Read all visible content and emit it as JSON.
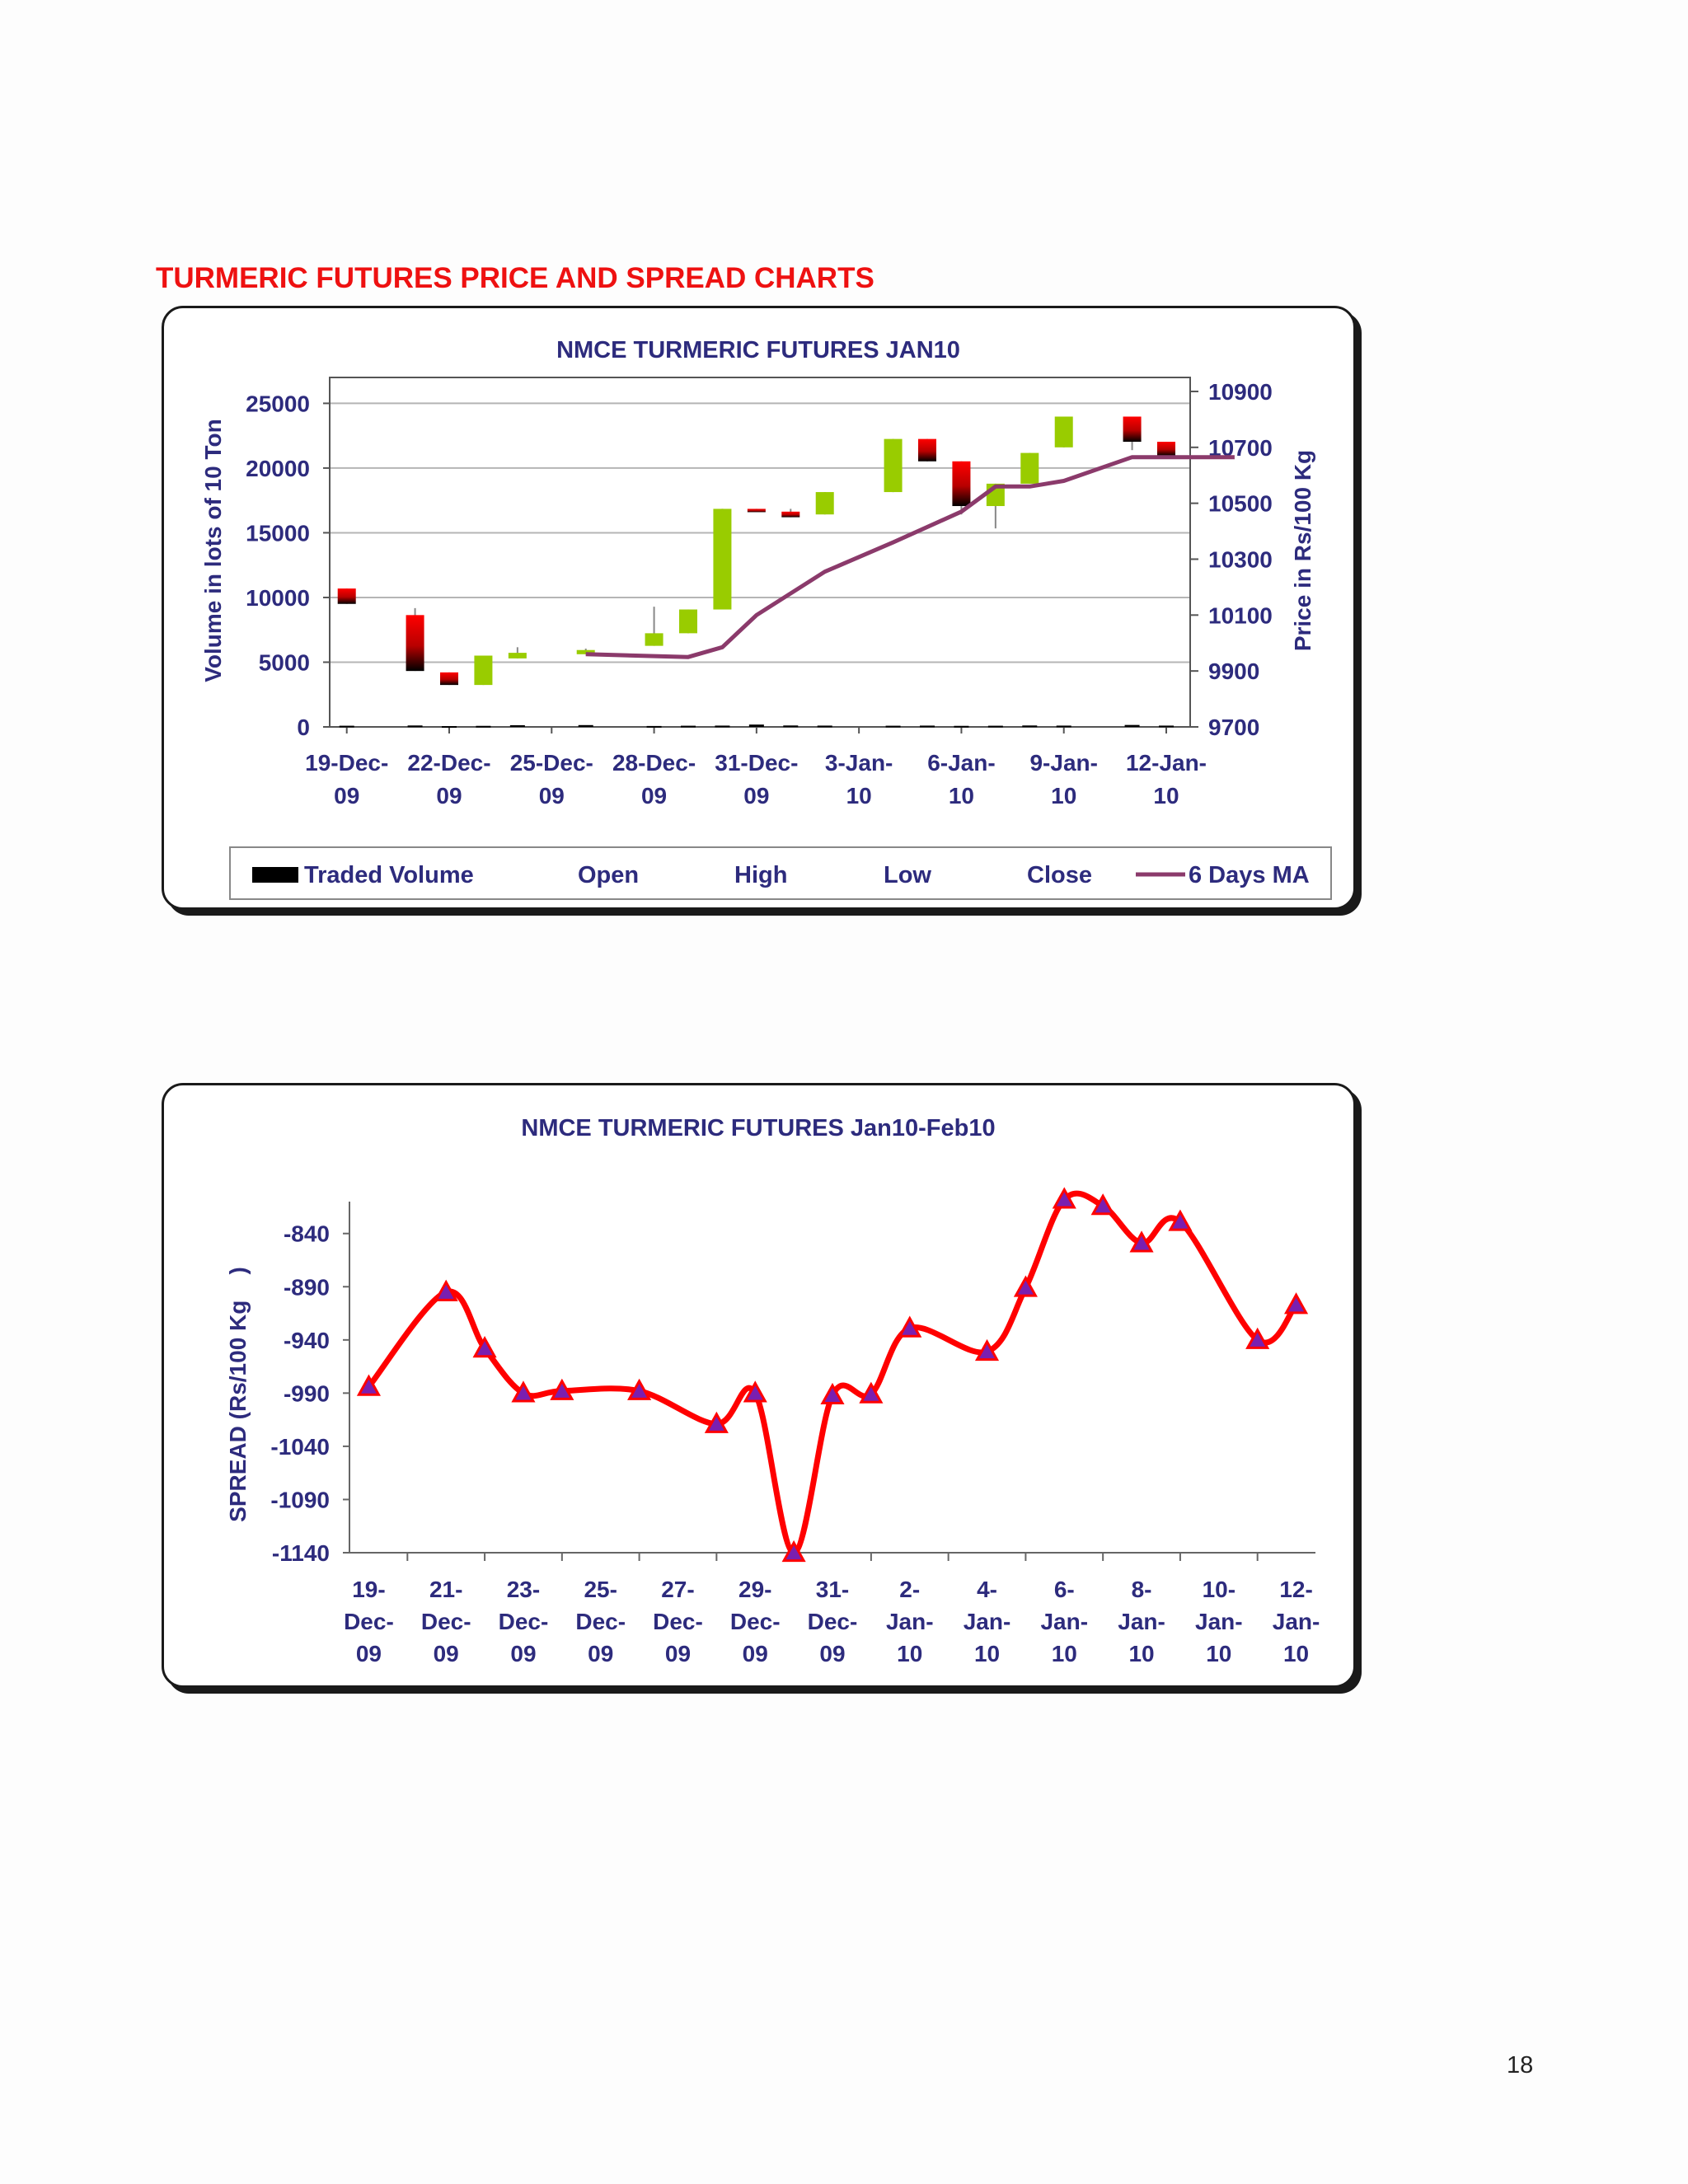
{
  "section_title": "TURMERIC FUTURES PRICE AND SPREAD CHARTS",
  "page_number": "18",
  "colors": {
    "title_red": "#ee1111",
    "text_navy": "#2d2b7d",
    "up_candle": "#99cc00",
    "down_candle_top": "#ff0000",
    "down_candle_bottom": "#000000",
    "ma_line": "#8b3a6b",
    "spread_line": "#ff0000",
    "marker_fill": "#7a1fb0",
    "grid": "#b5b5b5"
  },
  "chart_data": [
    {
      "type": "candlestick",
      "title": "NMCE TURMERIC FUTURES JAN10",
      "ylabel_left": "Volume in lots of 10 Ton",
      "ylabel_right": "Price in Rs/100 Kg",
      "left_ticks": [
        "0",
        "5000",
        "10000",
        "15000",
        "20000",
        "25000"
      ],
      "right_ticks": [
        "9700",
        "9900",
        "10100",
        "10300",
        "10500",
        "10700",
        "10900"
      ],
      "y_left_range": [
        0,
        27000
      ],
      "y_right_range": [
        9700,
        10950
      ],
      "x_tick_labels": [
        [
          "19-Dec-",
          "09"
        ],
        [
          "22-Dec-",
          "09"
        ],
        [
          "25-Dec-",
          "09"
        ],
        [
          "28-Dec-",
          "09"
        ],
        [
          "31-Dec-",
          "09"
        ],
        [
          "3-Jan-",
          "10"
        ],
        [
          "6-Jan-",
          "10"
        ],
        [
          "9-Jan-",
          "10"
        ],
        [
          "12-Jan-",
          "10"
        ]
      ],
      "x_tick_days": [
        0,
        3,
        6,
        9,
        12,
        15,
        18,
        21,
        24
      ],
      "x_range_days": [
        -0.5,
        24.7
      ],
      "legend": [
        "Traded Volume",
        "Open",
        "High",
        "Low",
        "Close",
        "6 Days MA"
      ],
      "legend_position": "bottom",
      "grid": true,
      "candles": [
        {
          "date": "19-Dec-09",
          "open": 10195,
          "high": 10195,
          "low": 10140,
          "close": 10140
        },
        {
          "date": "21-Dec-09",
          "open": 10100,
          "high": 10125,
          "low": 9900,
          "close": 9900
        },
        {
          "date": "22-Dec-09",
          "open": 9895,
          "high": 9895,
          "low": 9850,
          "close": 9850
        },
        {
          "date": "23-Dec-09",
          "open": 9850,
          "high": 9955,
          "low": 9850,
          "close": 9955
        },
        {
          "date": "24-Dec-09",
          "open": 9945,
          "high": 9985,
          "low": 9945,
          "close": 9965
        },
        {
          "date": "26-Dec-09",
          "open": 9960,
          "high": 9980,
          "low": 9960,
          "close": 9975
        },
        {
          "date": "28-Dec-09",
          "open": 9990,
          "high": 10130,
          "low": 9990,
          "close": 10035
        },
        {
          "date": "29-Dec-09",
          "open": 10035,
          "high": 10120,
          "low": 10035,
          "close": 10120
        },
        {
          "date": "30-Dec-09",
          "open": 10120,
          "high": 10480,
          "low": 10120,
          "close": 10480
        },
        {
          "date": "31-Dec-09",
          "open": 10480,
          "high": 10480,
          "low": 10470,
          "close": 10470
        },
        {
          "date": "1-Jan-10",
          "open": 10470,
          "high": 10480,
          "low": 10450,
          "close": 10450
        },
        {
          "date": "2-Jan-10",
          "open": 10460,
          "high": 10540,
          "low": 10460,
          "close": 10540
        },
        {
          "date": "4-Jan-10",
          "open": 10540,
          "high": 10730,
          "low": 10540,
          "close": 10730
        },
        {
          "date": "5-Jan-10",
          "open": 10730,
          "high": 10730,
          "low": 10650,
          "close": 10650
        },
        {
          "date": "6-Jan-10",
          "open": 10650,
          "high": 10650,
          "low": 10460,
          "close": 10490
        },
        {
          "date": "7-Jan-10",
          "open": 10490,
          "high": 10570,
          "low": 10410,
          "close": 10570
        },
        {
          "date": "8-Jan-10",
          "open": 10570,
          "high": 10680,
          "low": 10570,
          "close": 10680
        },
        {
          "date": "9-Jan-10",
          "open": 10700,
          "high": 10810,
          "low": 10700,
          "close": 10810
        },
        {
          "date": "11-Jan-10",
          "open": 10810,
          "high": 10810,
          "low": 10690,
          "close": 10720
        },
        {
          "date": "12-Jan-10",
          "open": 10720,
          "high": 10720,
          "low": 10660,
          "close": 10670
        }
      ],
      "candle_days": [
        0,
        2,
        3,
        4,
        5,
        7,
        9,
        10,
        11,
        12,
        13,
        14,
        16,
        17,
        18,
        19,
        20,
        21,
        23,
        24
      ],
      "traded_volume": [
        90,
        110,
        60,
        80,
        130,
        140,
        70,
        90,
        100,
        180,
        110,
        100,
        90,
        100,
        80,
        90,
        110,
        100,
        150,
        100
      ],
      "ma_6_days": [
        {
          "day": 7,
          "value": 9960
        },
        {
          "day": 10,
          "value": 9950
        },
        {
          "day": 11,
          "value": 9985
        },
        {
          "day": 12,
          "value": 10100
        },
        {
          "day": 14,
          "value": 10255
        },
        {
          "day": 16,
          "value": 10360
        },
        {
          "day": 18,
          "value": 10470
        },
        {
          "day": 19,
          "value": 10560
        },
        {
          "day": 20,
          "value": 10560
        },
        {
          "day": 21,
          "value": 10580
        },
        {
          "day": 23,
          "value": 10665
        },
        {
          "day": 24,
          "value": 10665
        },
        {
          "day": 26,
          "value": 10665
        }
      ]
    },
    {
      "type": "line",
      "title": "NMCE TURMERIC FUTURES Jan10-Feb10",
      "ylabel": "SPREAD (Rs/100 Kg    )",
      "y_ticks": [
        "-840",
        "-890",
        "-940",
        "-990",
        "-1040",
        "-1090",
        "-1140"
      ],
      "ylim": [
        -1140,
        -810
      ],
      "x_tick_labels": [
        [
          "19-",
          "Dec-",
          "09"
        ],
        [
          "21-",
          "Dec-",
          "09"
        ],
        [
          "23-",
          "Dec-",
          "09"
        ],
        [
          "25-",
          "Dec-",
          "09"
        ],
        [
          "27-",
          "Dec-",
          "09"
        ],
        [
          "29-",
          "Dec-",
          "09"
        ],
        [
          "31-",
          "Dec-",
          "09"
        ],
        [
          "2-",
          "Jan-",
          "10"
        ],
        [
          "4-",
          "Jan-",
          "10"
        ],
        [
          "6-",
          "Jan-",
          "10"
        ],
        [
          "8-",
          "Jan-",
          "10"
        ],
        [
          "10-",
          "Jan-",
          "10"
        ],
        [
          "12-",
          "Jan-",
          "10"
        ]
      ],
      "x_tick_days": [
        0,
        2,
        4,
        6,
        8,
        10,
        12,
        14,
        16,
        18,
        20,
        22,
        24
      ],
      "x_range_days": [
        -0.5,
        24.5
      ],
      "grid": false,
      "marker": "triangle",
      "points": [
        {
          "date": "19-Dec-09",
          "day": 0,
          "value": -984
        },
        {
          "date": "21-Dec-09",
          "day": 2,
          "value": -895
        },
        {
          "date": "22-Dec-09",
          "day": 3,
          "value": -948
        },
        {
          "date": "23-Dec-09",
          "day": 4,
          "value": -990
        },
        {
          "date": "24-Dec-09",
          "day": 5,
          "value": -988
        },
        {
          "date": "26-Dec-09",
          "day": 7,
          "value": -988
        },
        {
          "date": "28-Dec-09",
          "day": 9,
          "value": -1019
        },
        {
          "date": "29-Dec-09",
          "day": 10,
          "value": -990
        },
        {
          "date": "30-Dec-09",
          "day": 11,
          "value": -1140
        },
        {
          "date": "31-Dec-09",
          "day": 12,
          "value": -992
        },
        {
          "date": "1-Jan-10",
          "day": 13,
          "value": -991
        },
        {
          "date": "2-Jan-10",
          "day": 14,
          "value": -929
        },
        {
          "date": "4-Jan-10",
          "day": 16,
          "value": -951
        },
        {
          "date": "5-Jan-10",
          "day": 17,
          "value": -891
        },
        {
          "date": "6-Jan-10",
          "day": 18,
          "value": -808
        },
        {
          "date": "7-Jan-10",
          "day": 19,
          "value": -814
        },
        {
          "date": "8-Jan-10",
          "day": 20,
          "value": -849
        },
        {
          "date": "9-Jan-10",
          "day": 21,
          "value": -829
        },
        {
          "date": "11-Jan-10",
          "day": 23,
          "value": -940
        },
        {
          "date": "12-Jan-10",
          "day": 24,
          "value": -907
        }
      ]
    }
  ]
}
